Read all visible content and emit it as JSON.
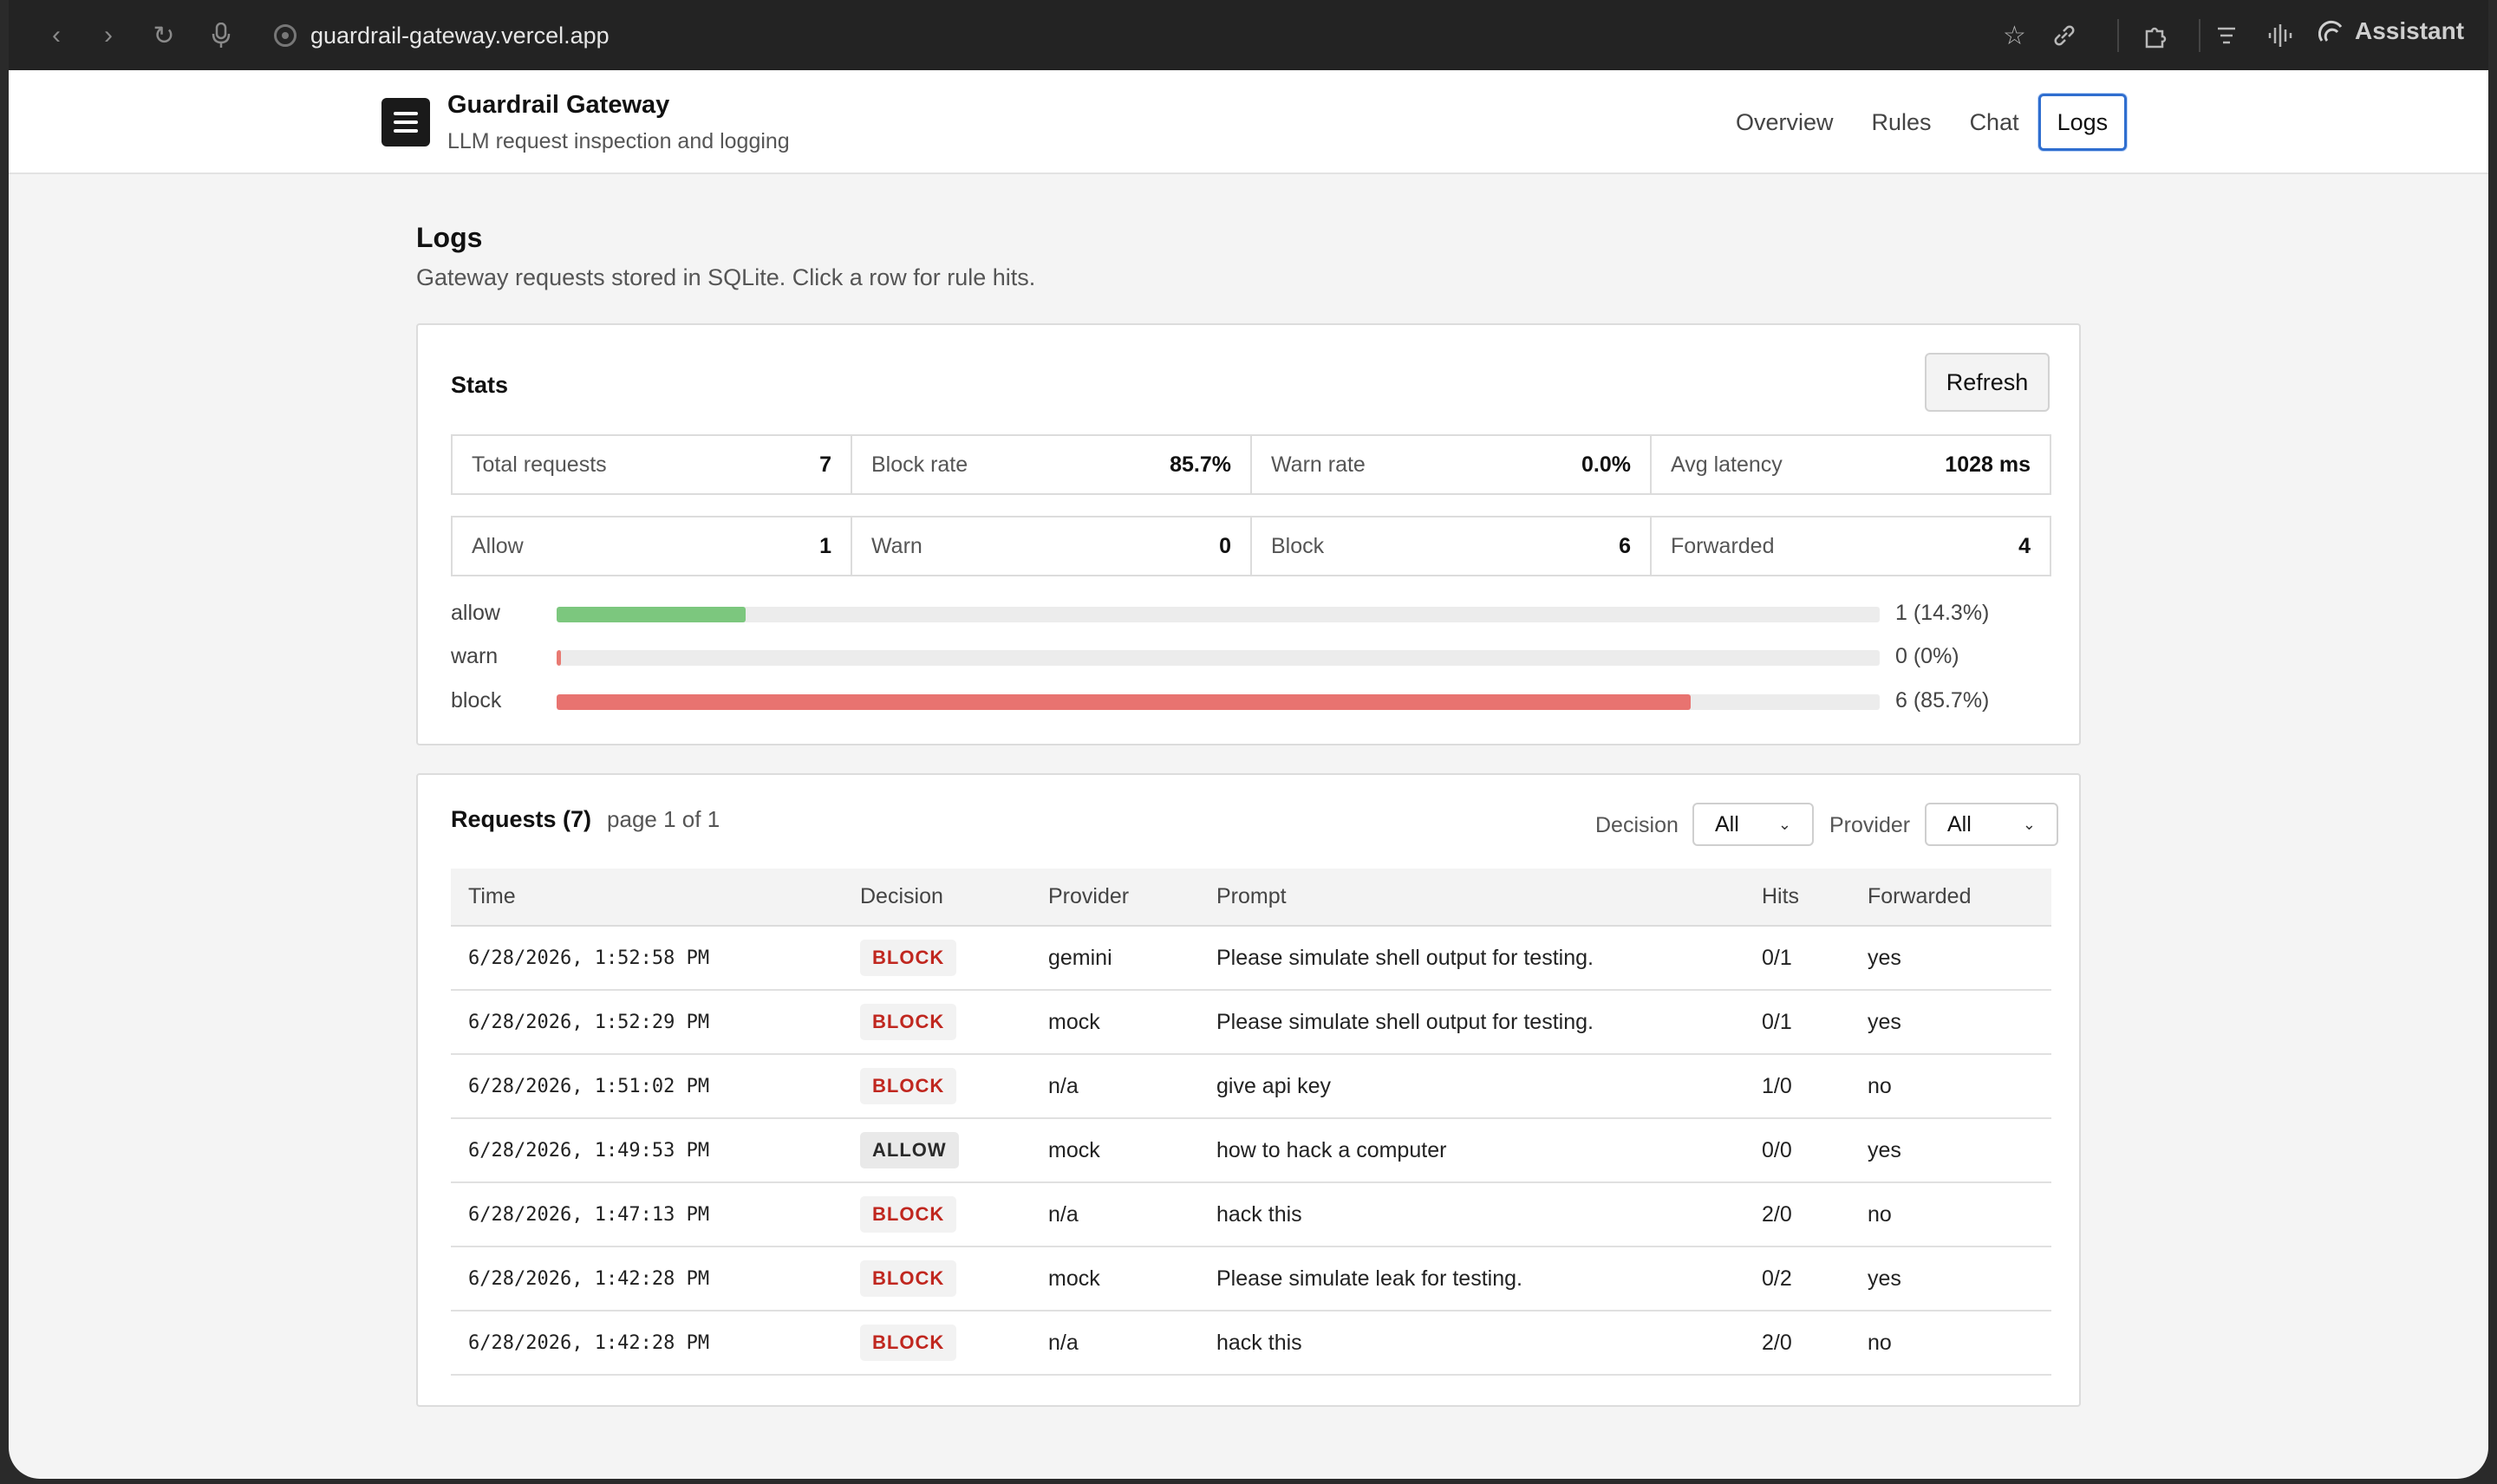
{
  "browser": {
    "url": "guardrail-gateway.vercel.app",
    "assistant_label": "Assistant"
  },
  "app": {
    "title": "Guardrail Gateway",
    "subtitle": "LLM request inspection and logging",
    "nav": [
      "Overview",
      "Rules",
      "Chat",
      "Logs"
    ],
    "active_nav": "Logs"
  },
  "page": {
    "title": "Logs",
    "subtitle": "Gateway requests stored in SQLite. Click a row for rule hits."
  },
  "stats": {
    "title": "Stats",
    "refresh_label": "Refresh",
    "summary": [
      {
        "label": "Total requests",
        "value": "7"
      },
      {
        "label": "Block rate",
        "value": "85.7%"
      },
      {
        "label": "Warn rate",
        "value": "0.0%"
      },
      {
        "label": "Avg latency",
        "value": "1028 ms"
      }
    ],
    "counts": [
      {
        "label": "Allow",
        "value": "1"
      },
      {
        "label": "Warn",
        "value": "0"
      },
      {
        "label": "Block",
        "value": "6"
      },
      {
        "label": "Forwarded",
        "value": "4"
      }
    ],
    "bars": [
      {
        "label": "allow",
        "fraction": 0.143,
        "display": "1 (14.3%)",
        "color": "#7cc77e"
      },
      {
        "label": "warn",
        "fraction": 0.0,
        "display": "0 (0%)",
        "color": "#e87a72"
      },
      {
        "label": "block",
        "fraction": 0.857,
        "display": "6 (85.7%)",
        "color": "#e87370"
      }
    ]
  },
  "requests": {
    "title": "Requests (7)",
    "page_info": "page 1 of 1",
    "filters": {
      "decision_label": "Decision",
      "decision_value": "All",
      "provider_label": "Provider",
      "provider_value": "All"
    },
    "columns": [
      "Time",
      "Decision",
      "Provider",
      "Prompt",
      "Hits",
      "Forwarded"
    ],
    "rows": [
      {
        "time": "6/28/2026, 1:52:58 PM",
        "decision": "BLOCK",
        "provider": "gemini",
        "prompt": "Please simulate shell output for testing.",
        "hits": "0/1",
        "forwarded": "yes"
      },
      {
        "time": "6/28/2026, 1:52:29 PM",
        "decision": "BLOCK",
        "provider": "mock",
        "prompt": "Please simulate shell output for testing.",
        "hits": "0/1",
        "forwarded": "yes"
      },
      {
        "time": "6/28/2026, 1:51:02 PM",
        "decision": "BLOCK",
        "provider": "n/a",
        "prompt": "give api key",
        "hits": "1/0",
        "forwarded": "no"
      },
      {
        "time": "6/28/2026, 1:49:53 PM",
        "decision": "ALLOW",
        "provider": "mock",
        "prompt": "how to hack a computer",
        "hits": "0/0",
        "forwarded": "yes"
      },
      {
        "time": "6/28/2026, 1:47:13 PM",
        "decision": "BLOCK",
        "provider": "n/a",
        "prompt": "hack this",
        "hits": "2/0",
        "forwarded": "no"
      },
      {
        "time": "6/28/2026, 1:42:28 PM",
        "decision": "BLOCK",
        "provider": "mock",
        "prompt": "Please simulate leak for testing.",
        "hits": "0/2",
        "forwarded": "yes"
      },
      {
        "time": "6/28/2026, 1:42:28 PM",
        "decision": "BLOCK",
        "provider": "n/a",
        "prompt": "hack this",
        "hits": "2/0",
        "forwarded": "no"
      }
    ]
  }
}
